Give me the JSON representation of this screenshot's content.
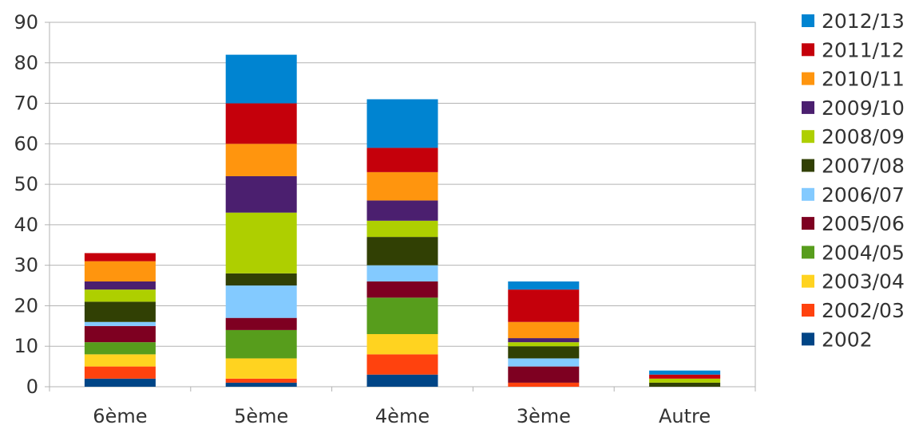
{
  "chart_data": {
    "type": "bar",
    "stacked": true,
    "categories": [
      "6ème",
      "5ème",
      "4ème",
      "3ème",
      "Autre"
    ],
    "ylim": [
      0,
      90
    ],
    "yticks": [
      0,
      10,
      20,
      30,
      40,
      50,
      60,
      70,
      80,
      90
    ],
    "grid": true,
    "legend_position": "right",
    "series": [
      {
        "name": "2002",
        "color": "#004586",
        "values": [
          2,
          1,
          3,
          0,
          0
        ]
      },
      {
        "name": "2002/03",
        "color": "#FF420E",
        "values": [
          3,
          1,
          5,
          1,
          0
        ]
      },
      {
        "name": "2003/04",
        "color": "#FFD320",
        "values": [
          3,
          5,
          5,
          0,
          0
        ]
      },
      {
        "name": "2004/05",
        "color": "#579D1C",
        "values": [
          3,
          7,
          9,
          0,
          0
        ]
      },
      {
        "name": "2005/06",
        "color": "#7E0021",
        "values": [
          4,
          3,
          4,
          4,
          0
        ]
      },
      {
        "name": "2006/07",
        "color": "#83CAFF",
        "values": [
          1,
          8,
          4,
          2,
          0
        ]
      },
      {
        "name": "2007/08",
        "color": "#314004",
        "values": [
          5,
          3,
          7,
          3,
          1
        ]
      },
      {
        "name": "2008/09",
        "color": "#AECF00",
        "values": [
          3,
          15,
          4,
          1,
          1
        ]
      },
      {
        "name": "2009/10",
        "color": "#4B1F6F",
        "values": [
          2,
          9,
          5,
          1,
          0
        ]
      },
      {
        "name": "2010/11",
        "color": "#FF950E",
        "values": [
          5,
          8,
          7,
          4,
          0
        ]
      },
      {
        "name": "2011/12",
        "color": "#C5000B",
        "values": [
          2,
          10,
          6,
          8,
          1
        ]
      },
      {
        "name": "2012/13",
        "color": "#0084D1",
        "values": [
          0,
          12,
          12,
          2,
          1
        ]
      }
    ]
  }
}
